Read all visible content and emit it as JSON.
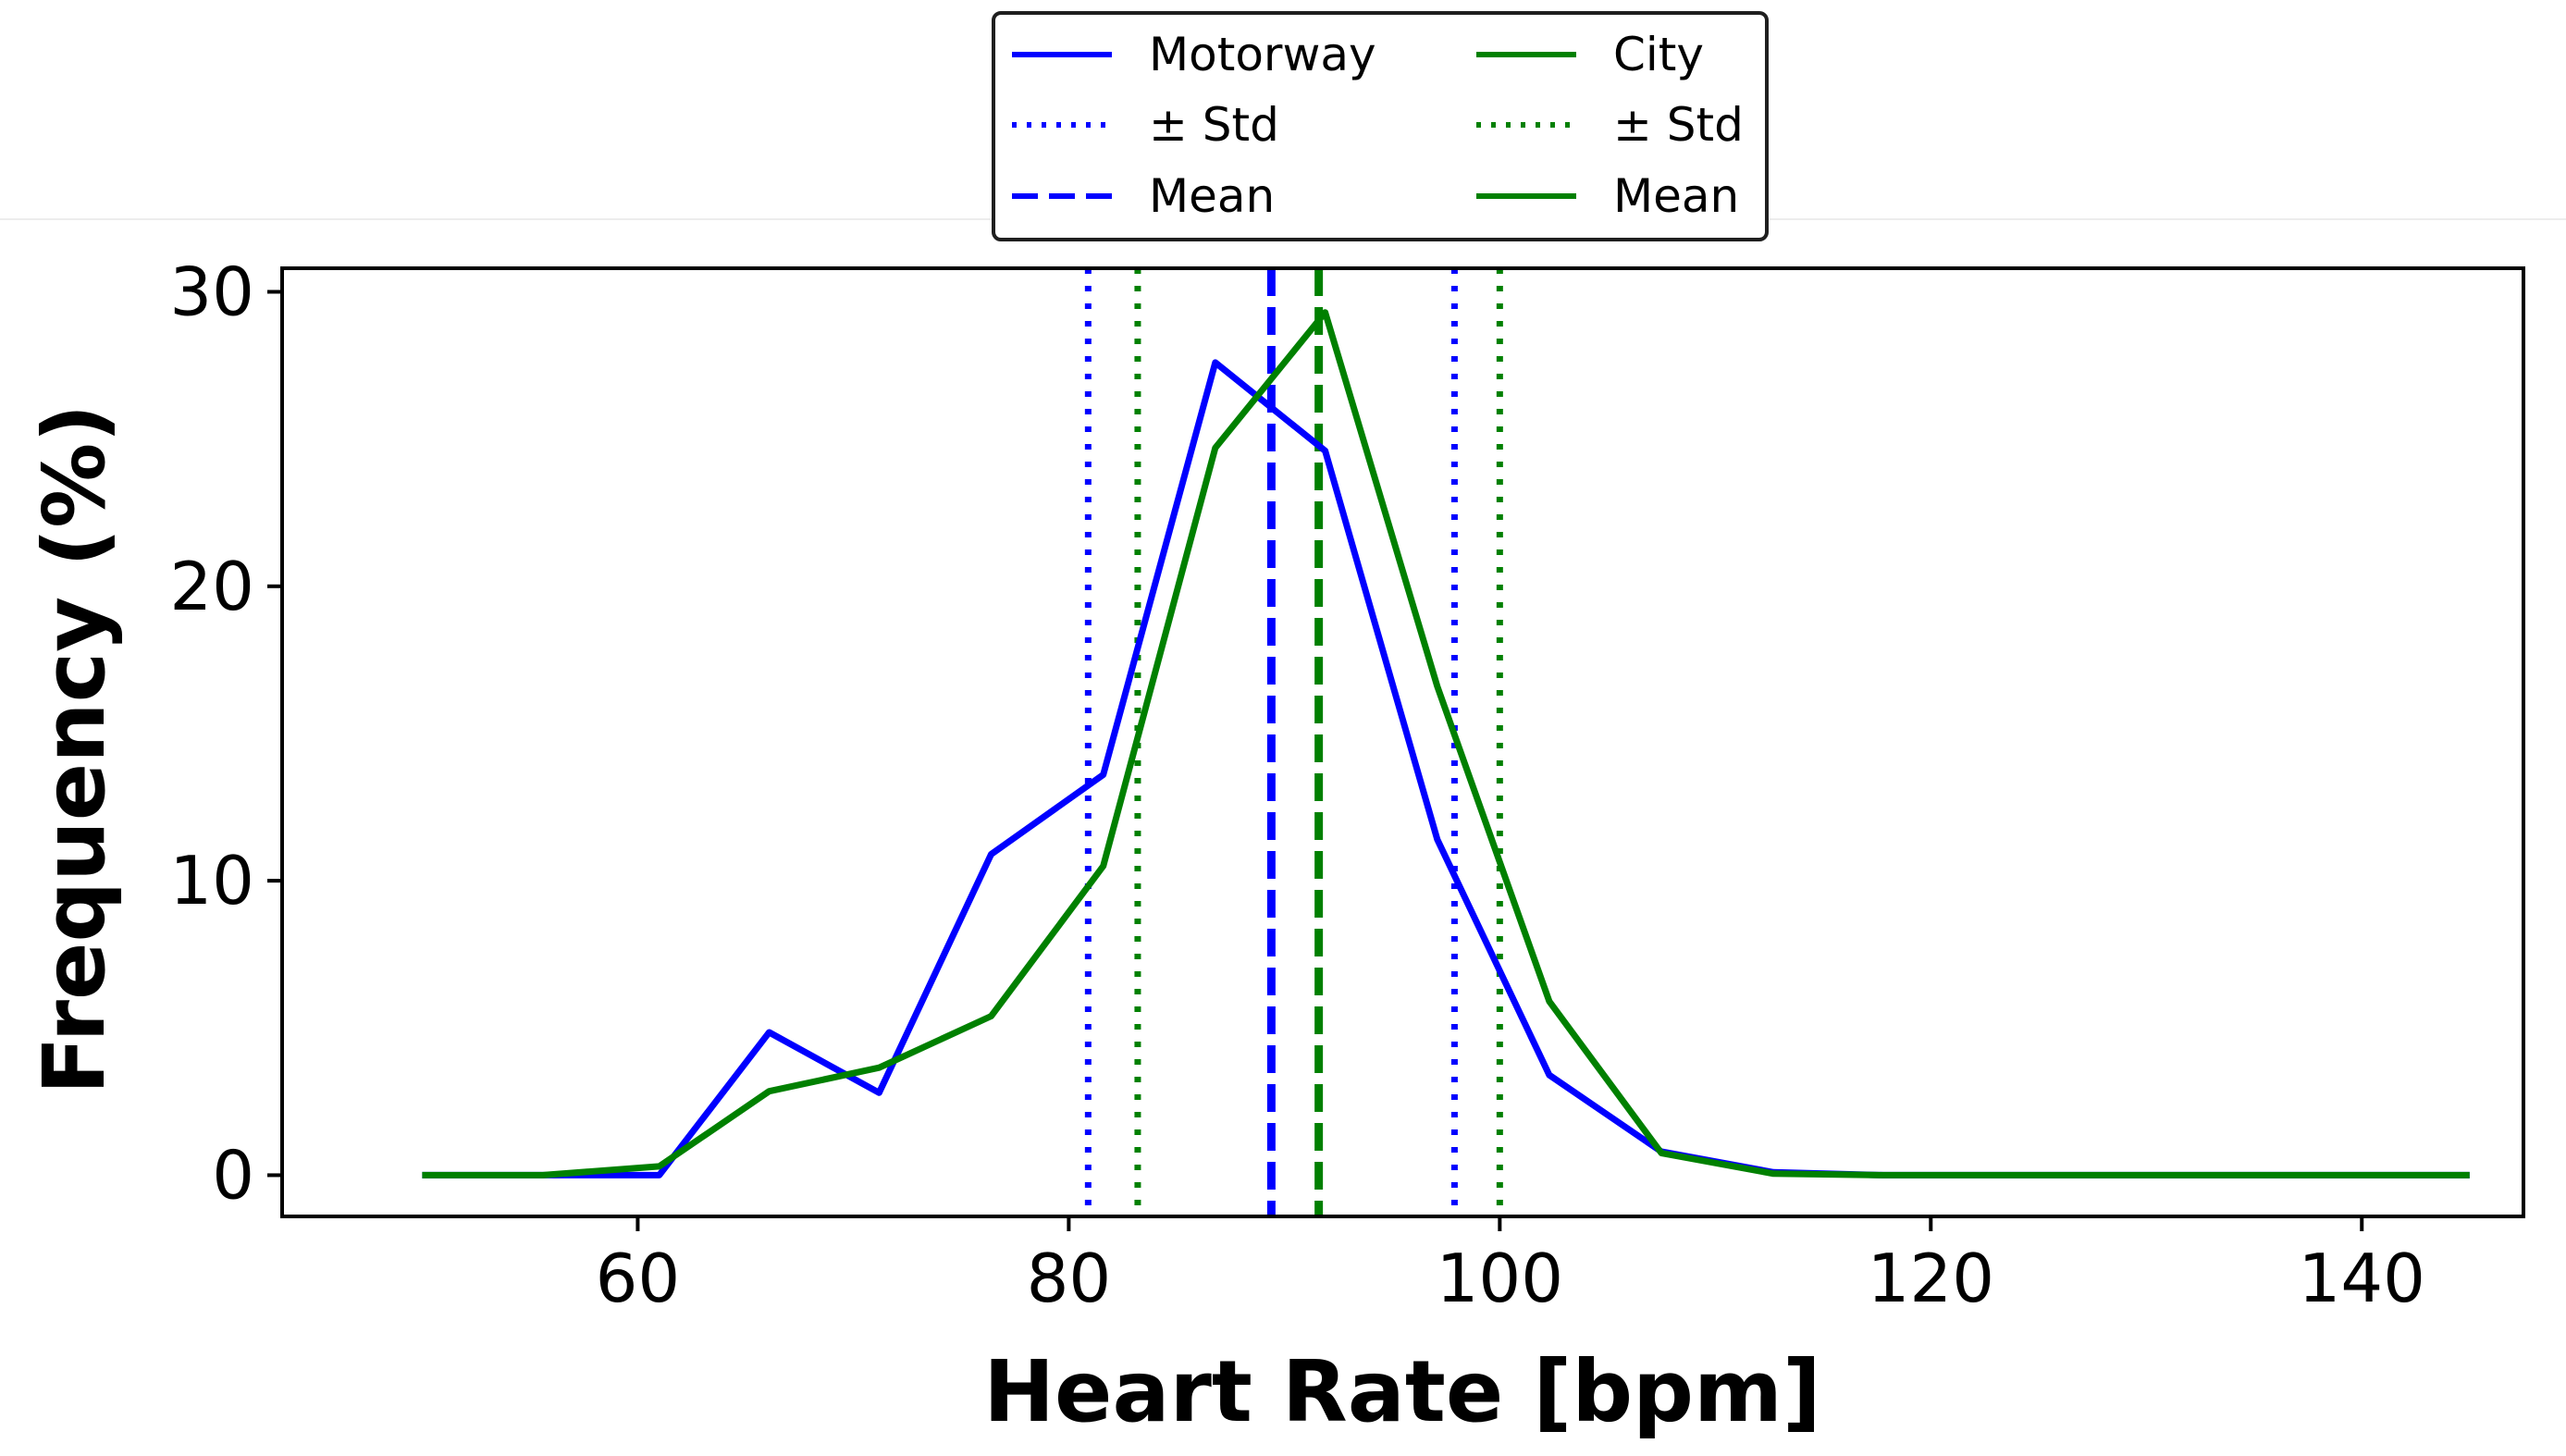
{
  "chart_data": {
    "type": "line",
    "title": "",
    "xlabel": "Heart Rate [bpm]",
    "ylabel": "Frequency (%)",
    "xlim": [
      43.5,
      147.5
    ],
    "ylim": [
      -1.4,
      30.8
    ],
    "xticks": [
      60,
      80,
      100,
      120,
      140
    ],
    "yticks": [
      0,
      10,
      20,
      30
    ],
    "x": [
      50,
      55.6,
      61,
      66.1,
      71.2,
      76.4,
      81.6,
      86.8,
      91.9,
      97.1,
      102.3,
      107.5,
      112.7,
      117.8,
      123,
      128.2,
      133.4,
      138.6,
      143.8,
      145
    ],
    "series": [
      {
        "name": "Motorway",
        "color": "#0000ff",
        "style": "solid",
        "values": [
          0,
          0,
          0,
          4.85,
          2.8,
          10.9,
          13.6,
          27.6,
          24.6,
          11.4,
          3.4,
          0.8,
          0.1,
          0,
          0,
          0,
          0,
          0,
          0,
          0
        ]
      },
      {
        "name": "City",
        "color": "#008000",
        "style": "solid",
        "values": [
          0,
          0,
          0.3,
          2.85,
          3.65,
          5.4,
          10.5,
          24.7,
          29.3,
          16.6,
          5.9,
          0.75,
          0.05,
          0,
          0,
          0,
          0,
          0,
          0,
          0
        ]
      }
    ],
    "reference_lines": [
      {
        "group": "Motorway",
        "kind": "std",
        "x": 80.9,
        "color": "#0000ff",
        "style": "dotted"
      },
      {
        "group": "Motorway",
        "kind": "mean",
        "x": 89.4,
        "color": "#0000ff",
        "style": "dashed"
      },
      {
        "group": "Motorway",
        "kind": "std",
        "x": 97.9,
        "color": "#0000ff",
        "style": "dotted"
      },
      {
        "group": "City",
        "kind": "std",
        "x": 83.2,
        "color": "#008000",
        "style": "dotted"
      },
      {
        "group": "City",
        "kind": "mean",
        "x": 91.6,
        "color": "#008000",
        "style": "dashed"
      },
      {
        "group": "City",
        "kind": "std",
        "x": 100,
        "color": "#008000",
        "style": "dotted"
      }
    ],
    "legend": {
      "placement": "top-center",
      "columns": 2,
      "entries": [
        {
          "label": "Motorway",
          "color": "#0000ff",
          "style": "solid"
        },
        {
          "label": "± Std",
          "color": "#0000ff",
          "style": "dotted"
        },
        {
          "label": "Mean",
          "color": "#0000ff",
          "style": "dashed"
        },
        {
          "label": "City",
          "color": "#008000",
          "style": "solid"
        },
        {
          "label": "± Std",
          "color": "#008000",
          "style": "dotted"
        },
        {
          "label": "Mean",
          "color": "#008000",
          "style": "solid"
        }
      ]
    },
    "grid": false
  }
}
